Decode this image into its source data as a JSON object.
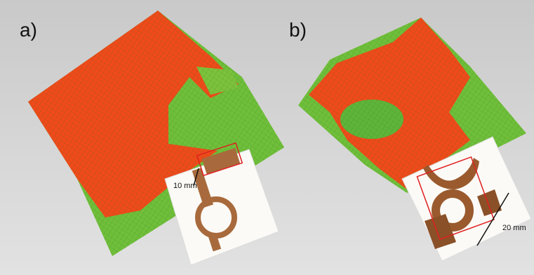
{
  "panels": [
    {
      "label": "a)",
      "scale": "10 mm"
    },
    {
      "label": "b)",
      "scale": "20 mm"
    }
  ]
}
